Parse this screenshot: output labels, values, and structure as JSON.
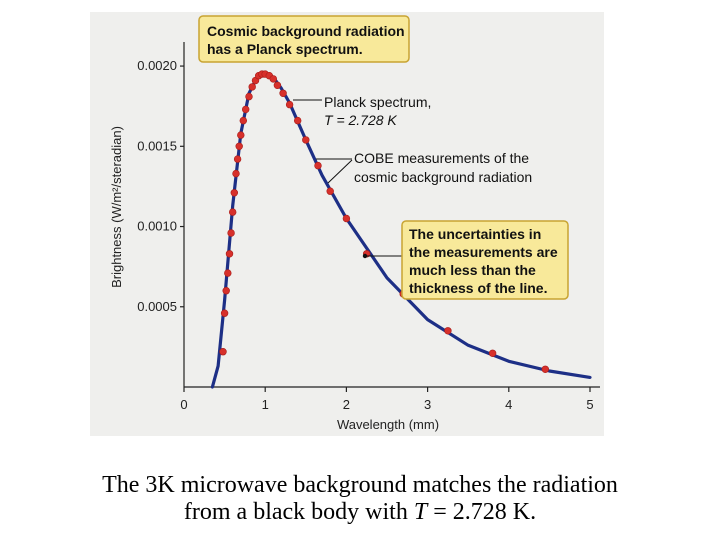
{
  "chart_data": {
    "type": "line",
    "title": "Cosmic background radiation has a Planck spectrum.",
    "xlabel": "Wavelength (mm)",
    "ylabel": "Brightness (W/m²/steradian)",
    "xlim": [
      0,
      5
    ],
    "ylim": [
      0,
      0.00215
    ],
    "xticks": [
      0,
      1,
      2,
      3,
      4,
      5
    ],
    "xtick_labels": [
      "0",
      "1",
      "2",
      "3",
      "4",
      "5"
    ],
    "yticks": [
      0.0005,
      0.001,
      0.0015,
      0.002
    ],
    "ytick_labels": [
      "0.0005",
      "0.0010",
      "0.0015",
      "0.0020"
    ],
    "grid": false,
    "series": [
      {
        "name": "Planck spectrum, T = 2.728 K",
        "color": "#1d2f86",
        "x": [
          0.35,
          0.42,
          0.5,
          0.6,
          0.7,
          0.8,
          0.9,
          1.0,
          1.1,
          1.2,
          1.3,
          1.5,
          1.7,
          2.0,
          2.5,
          3.0,
          3.5,
          4.0,
          4.5,
          5.0
        ],
        "y": [
          0.0,
          0.00013,
          0.00054,
          0.00113,
          0.00158,
          0.00183,
          0.00193,
          0.00195,
          0.00193,
          0.00186,
          0.00177,
          0.00154,
          0.00132,
          0.00105,
          0.00068,
          0.00042,
          0.00026,
          0.00016,
          0.0001,
          6e-05
        ]
      },
      {
        "name": "COBE measurements of the cosmic background radiation",
        "color": "#d7302b",
        "x": [
          0.48,
          0.5,
          0.52,
          0.54,
          0.56,
          0.58,
          0.6,
          0.62,
          0.64,
          0.66,
          0.68,
          0.7,
          0.73,
          0.76,
          0.8,
          0.84,
          0.88,
          0.92,
          0.96,
          1.0,
          1.05,
          1.1,
          1.15,
          1.22,
          1.3,
          1.4,
          1.5,
          1.65,
          1.8,
          2.0,
          2.25,
          2.7,
          3.25,
          3.8,
          4.45
        ],
        "y": [
          0.00022,
          0.00046,
          0.0006,
          0.00071,
          0.00083,
          0.00096,
          0.00109,
          0.00121,
          0.00133,
          0.00142,
          0.0015,
          0.00157,
          0.00166,
          0.00173,
          0.00181,
          0.00187,
          0.00191,
          0.00194,
          0.00195,
          0.00195,
          0.00194,
          0.00192,
          0.00188,
          0.00183,
          0.00176,
          0.00166,
          0.00154,
          0.00138,
          0.00122,
          0.00105,
          0.00083,
          0.00058,
          0.00035,
          0.00021,
          0.00011
        ]
      }
    ],
    "annotations": [
      {
        "text": [
          "Cosmic background radiation",
          "has a Planck spectrum."
        ],
        "style": "boxed"
      },
      {
        "text": [
          "Planck spectrum,",
          "T = 2.728 K"
        ],
        "style": "leader"
      },
      {
        "text": [
          "COBE measurements of the",
          "cosmic background radiation"
        ],
        "style": "leader"
      },
      {
        "text": [
          "The uncertainties in",
          "the measurements are",
          "much less than the",
          "thickness of the line."
        ],
        "style": "boxed"
      }
    ]
  },
  "caption": {
    "line1": "The 3K microwave background matches the radiation",
    "line2_prefix": "from a black body with ",
    "line2_var": "T",
    "line2_suffix": " = 2.728 K."
  }
}
